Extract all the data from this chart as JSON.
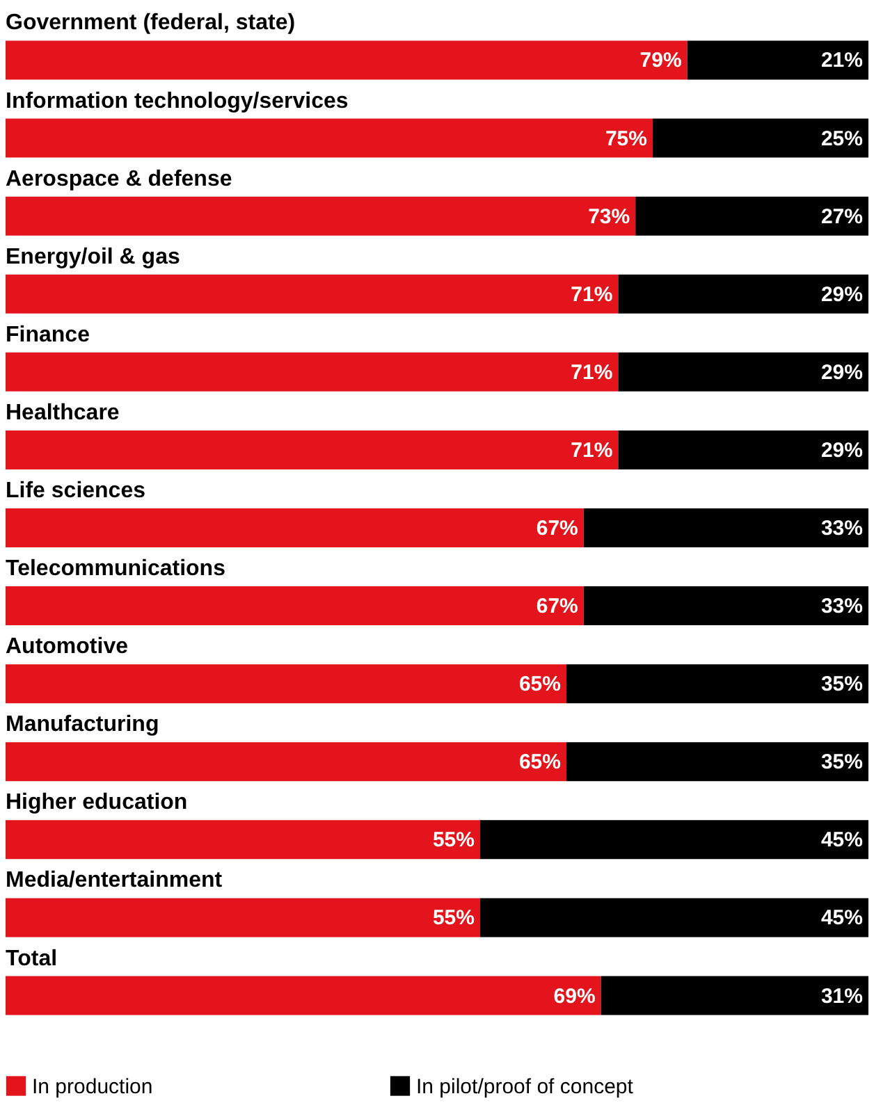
{
  "chart_data": {
    "type": "bar",
    "orientation": "horizontal",
    "stacked": true,
    "categories": [
      "Government (federal, state)",
      "Information technology/services",
      "Aerospace & defense",
      "Energy/oil & gas",
      "Finance",
      "Healthcare",
      "Life sciences",
      "Telecommunications",
      "Automotive",
      "Manufacturing",
      "Higher education",
      "Media/entertainment",
      "Total"
    ],
    "series": [
      {
        "name": "In production",
        "color": "#e3141c",
        "values": [
          79,
          75,
          73,
          71,
          71,
          71,
          67,
          67,
          65,
          65,
          55,
          55,
          69
        ],
        "value_labels": [
          "79%",
          "75%",
          "73%",
          "71%",
          "71%",
          "71%",
          "67%",
          "67%",
          "65%",
          "65%",
          "55%",
          "55%",
          "69%"
        ]
      },
      {
        "name": "In pilot/proof of concept",
        "color": "#000000",
        "values": [
          21,
          25,
          27,
          29,
          29,
          29,
          33,
          33,
          35,
          35,
          45,
          45,
          31
        ],
        "value_labels": [
          "21%",
          "25%",
          "27%",
          "29%",
          "29%",
          "29%",
          "33%",
          "33%",
          "35%",
          "35%",
          "45%",
          "45%",
          "31%"
        ]
      }
    ],
    "xlim": [
      0,
      100
    ],
    "tick_labels": false,
    "legend": "bottom"
  }
}
